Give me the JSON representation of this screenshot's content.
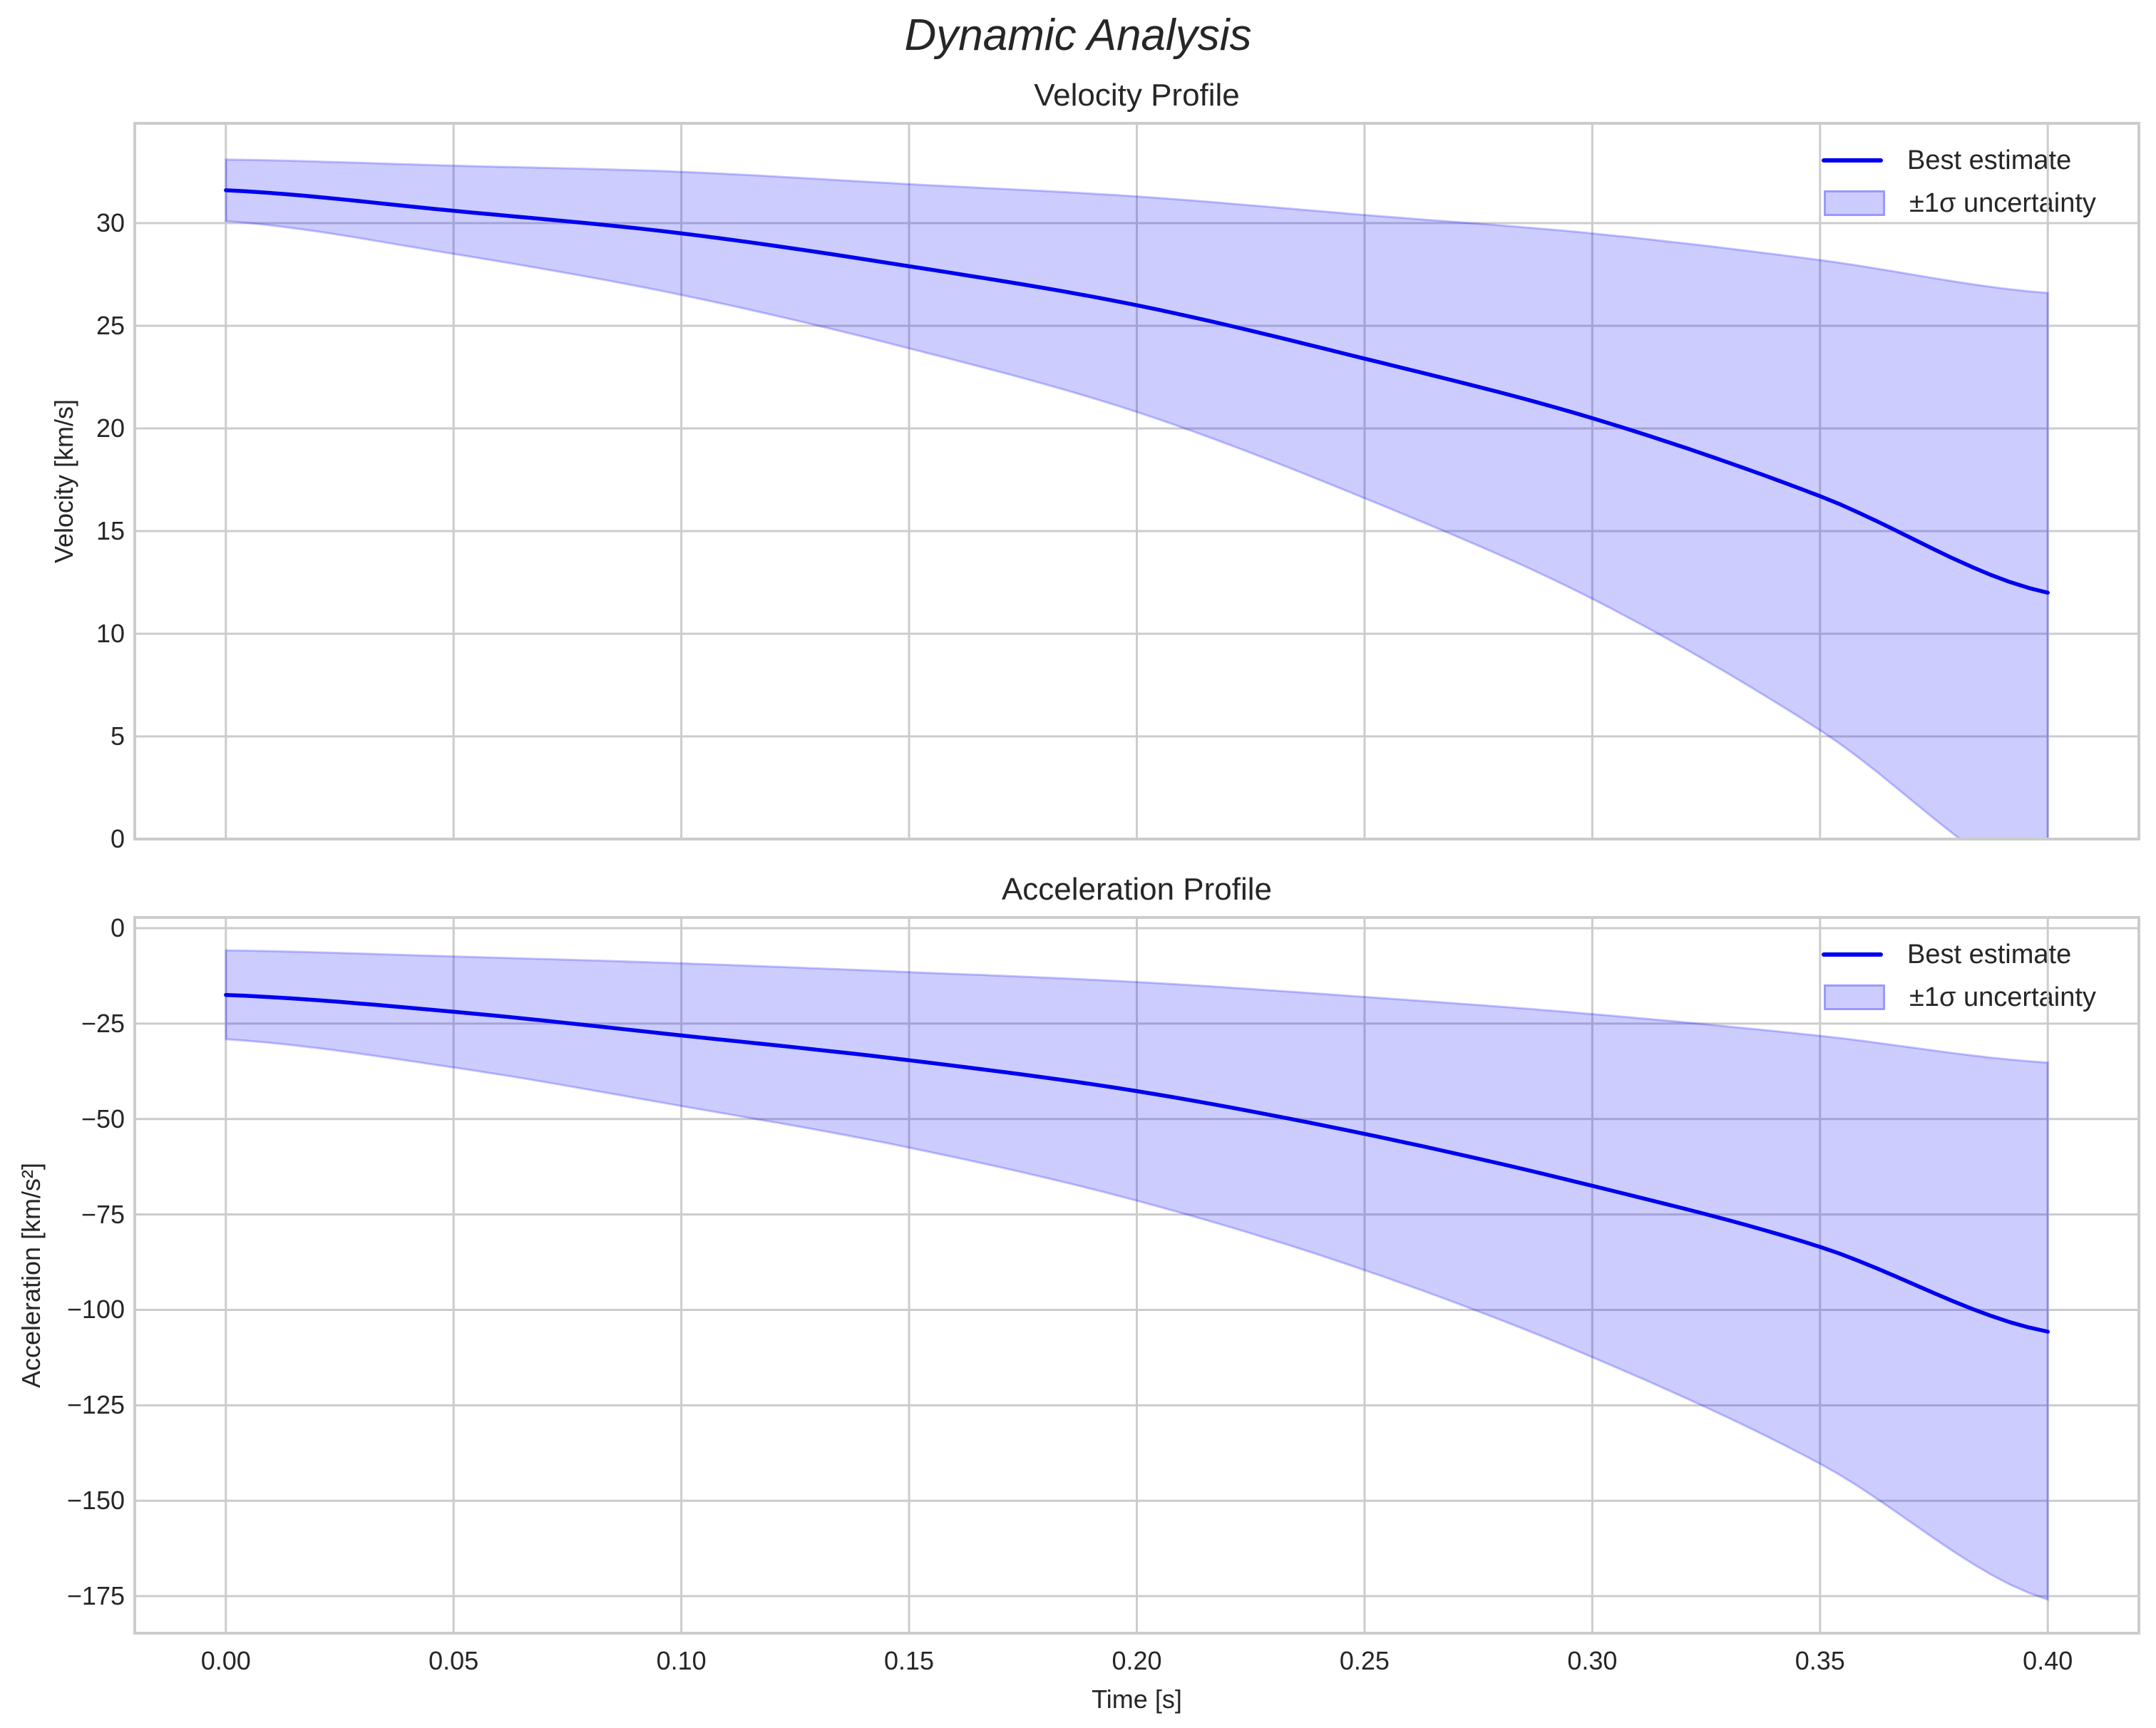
{
  "figure": {
    "suptitle": "Dynamic Analysis"
  },
  "colors": {
    "line": "#0000ee",
    "band_fill": "#0000ff",
    "band_alpha": 0.2,
    "grid": "#cccccc",
    "spine": "#cccccc",
    "text": "#262626"
  },
  "legend": {
    "line_label": "Best estimate",
    "band_label": "±1σ uncertainty"
  },
  "chart_data": [
    {
      "type": "line",
      "title": "Velocity Profile",
      "xlabel": "",
      "ylabel": "Velocity [km/s]",
      "x": [
        0.0,
        0.05,
        0.1,
        0.15,
        0.2,
        0.25,
        0.3,
        0.35,
        0.4
      ],
      "series": [
        {
          "name": "Best estimate",
          "values": [
            31.6,
            30.6,
            29.5,
            27.9,
            26.0,
            23.4,
            20.5,
            16.7,
            12.0
          ]
        },
        {
          "name": "±1σ uncertainty (upper)",
          "values": [
            33.1,
            32.8,
            32.5,
            31.9,
            31.3,
            30.4,
            29.5,
            28.2,
            26.6
          ]
        },
        {
          "name": "±1σ uncertainty (lower)",
          "values": [
            30.1,
            28.5,
            26.5,
            23.9,
            20.8,
            16.6,
            11.7,
            5.3,
            -2.5
          ]
        }
      ],
      "xlim": [
        -0.02,
        0.42
      ],
      "ylim": [
        0,
        34.86
      ],
      "xticks": [
        "0.00",
        "0.05",
        "0.10",
        "0.15",
        "0.20",
        "0.25",
        "0.30",
        "0.35",
        "0.40"
      ],
      "yticks": [
        0,
        5,
        10,
        15,
        20,
        25,
        30
      ],
      "xtick_labels_visible": false,
      "grid": true,
      "legend_position": "upper right"
    },
    {
      "type": "line",
      "title": "Acceleration Profile",
      "xlabel": "Time [s]",
      "ylabel": "Acceleration [km/s²]",
      "x": [
        0.0,
        0.05,
        0.1,
        0.15,
        0.2,
        0.25,
        0.3,
        0.35,
        0.4
      ],
      "series": [
        {
          "name": "Best estimate",
          "values": [
            -17.5,
            -21.9,
            -28.1,
            -34.6,
            -42.7,
            -53.9,
            -67.5,
            -83.5,
            -105.7
          ]
        },
        {
          "name": "±1σ uncertainty (upper)",
          "values": [
            -5.8,
            -7.4,
            -9.2,
            -11.5,
            -14.1,
            -18.0,
            -22.5,
            -28.2,
            -35.2
          ]
        },
        {
          "name": "±1σ uncertainty (lower)",
          "values": [
            -29.1,
            -36.5,
            -46.6,
            -57.5,
            -71.4,
            -89.6,
            -112.4,
            -140.3,
            -175.9
          ]
        }
      ],
      "xlim": [
        -0.02,
        0.42
      ],
      "ylim": [
        -184.7,
        2.8
      ],
      "xticks": [
        "0.00",
        "0.05",
        "0.10",
        "0.15",
        "0.20",
        "0.25",
        "0.30",
        "0.35",
        "0.40"
      ],
      "yticks": [
        0,
        -25,
        -50,
        -75,
        -100,
        -125,
        -150,
        -175
      ],
      "ytick_labels": [
        "0",
        "−25",
        "−50",
        "−75",
        "−100",
        "−125",
        "−150",
        "−175"
      ],
      "xtick_labels_visible": true,
      "grid": true,
      "legend_position": "upper right"
    }
  ]
}
